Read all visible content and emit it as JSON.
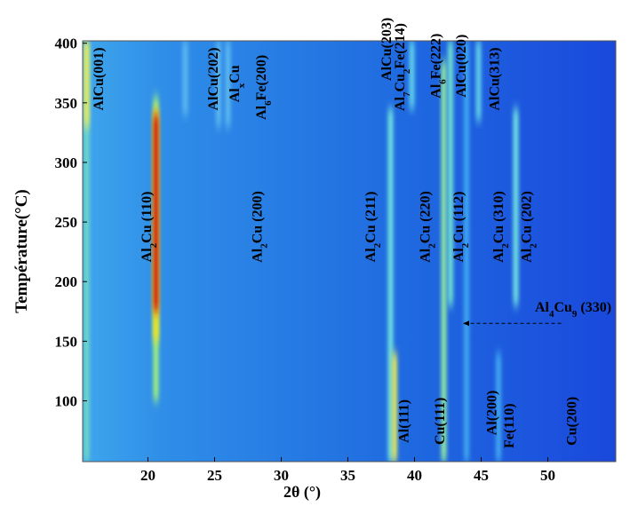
{
  "chart_data": {
    "type": "heatmap",
    "xlabel": "2θ (°)",
    "ylabel": "Température(°C)",
    "xlim": [
      15.1,
      55.1
    ],
    "ylim": [
      49,
      402
    ],
    "xticks": [
      20,
      25,
      30,
      35,
      40,
      45,
      50
    ],
    "yticks": [
      100,
      150,
      200,
      250,
      300,
      350,
      400
    ],
    "peaks": [
      {
        "x": 15.4,
        "ymin": 49,
        "ymax": 402,
        "color": "#6fd8c8"
      },
      {
        "x": 15.4,
        "ymin": 330,
        "ymax": 402,
        "color": "#e8e860"
      },
      {
        "x": 20.6,
        "ymin": 100,
        "ymax": 355,
        "color": "#9ff080"
      },
      {
        "x": 20.6,
        "ymin": 150,
        "ymax": 345,
        "color": "#f0e020"
      },
      {
        "x": 20.6,
        "ymin": 175,
        "ymax": 340,
        "color": "#d02010"
      },
      {
        "x": 22.8,
        "ymin": 340,
        "ymax": 402,
        "color": "#5cb8f0"
      },
      {
        "x": 25.3,
        "ymin": 330,
        "ymax": 402,
        "color": "#5cb8f0"
      },
      {
        "x": 26.0,
        "ymin": 330,
        "ymax": 402,
        "color": "#5cb8f0"
      },
      {
        "x": 38.2,
        "ymin": 49,
        "ymax": 345,
        "color": "#70e0e0"
      },
      {
        "x": 38.5,
        "ymin": 49,
        "ymax": 140,
        "color": "#e0e860"
      },
      {
        "x": 39.8,
        "ymin": 345,
        "ymax": 402,
        "color": "#60d0e8"
      },
      {
        "x": 42.2,
        "ymin": 49,
        "ymax": 385,
        "color": "#90e8a0"
      },
      {
        "x": 42.7,
        "ymin": 180,
        "ymax": 402,
        "color": "#70e0d0"
      },
      {
        "x": 43.9,
        "ymin": 49,
        "ymax": 402,
        "color": "#40a8f0"
      },
      {
        "x": 44.8,
        "ymin": 335,
        "ymax": 402,
        "color": "#60d0e8"
      },
      {
        "x": 47.6,
        "ymin": 180,
        "ymax": 345,
        "color": "#70e0e0"
      },
      {
        "x": 46.3,
        "ymin": 49,
        "ymax": 140,
        "color": "#40a8f0"
      }
    ],
    "annotations": [
      {
        "text": "AlCu(001)",
        "x": 16.3,
        "y": 370,
        "rotate": true
      },
      {
        "text": "Al2Cu (110)",
        "x": 19.9,
        "y": 246,
        "rotate": true
      },
      {
        "text": "AlCu(202)",
        "x": 24.9,
        "y": 370,
        "rotate": true
      },
      {
        "text": "AlxCu",
        "x": 26.5,
        "y": 366,
        "rotate": true
      },
      {
        "text": "Al6Fe(200)",
        "x": 28.5,
        "y": 363,
        "rotate": true
      },
      {
        "text": "Al2Cu (200)",
        "x": 28.2,
        "y": 246,
        "rotate": true
      },
      {
        "text": "Al2Cu (211)",
        "x": 36.7,
        "y": 246,
        "rotate": true
      },
      {
        "text": "AlCu(203)",
        "x": 37.9,
        "y": 395,
        "rotate": true
      },
      {
        "text": "Al7Cu2Fe(214)",
        "x": 38.9,
        "y": 380,
        "rotate": true
      },
      {
        "text": "Al6Fe(222)",
        "x": 41.6,
        "y": 381,
        "rotate": true
      },
      {
        "text": "AlCu(020)",
        "x": 43.5,
        "y": 381,
        "rotate": true
      },
      {
        "text": "AlCu(313)",
        "x": 46.0,
        "y": 370,
        "rotate": true
      },
      {
        "text": "Al2Cu (220)",
        "x": 40.8,
        "y": 246,
        "rotate": true
      },
      {
        "text": "Al2Cu (112)",
        "x": 43.3,
        "y": 246,
        "rotate": true
      },
      {
        "text": "Al2Cu (310)",
        "x": 46.3,
        "y": 246,
        "rotate": true
      },
      {
        "text": "Al2Cu (202)",
        "x": 48.4,
        "y": 246,
        "rotate": true
      },
      {
        "text": "Al(111)",
        "x": 39.2,
        "y": 83,
        "rotate": true
      },
      {
        "text": "Cu(111)",
        "x": 41.9,
        "y": 83,
        "rotate": true
      },
      {
        "text": "Al(200)",
        "x": 45.8,
        "y": 90,
        "rotate": true
      },
      {
        "text": "Fe(110)",
        "x": 47.1,
        "y": 79,
        "rotate": true
      },
      {
        "text": "Cu(200)",
        "x": 51.8,
        "y": 83,
        "rotate": true
      },
      {
        "text": "Al4Cu9 (330)",
        "x": 51.9,
        "y": 175,
        "rotate": false
      }
    ],
    "arrow": {
      "x_from": 51.0,
      "x_to": 43.7,
      "y": 165
    }
  }
}
